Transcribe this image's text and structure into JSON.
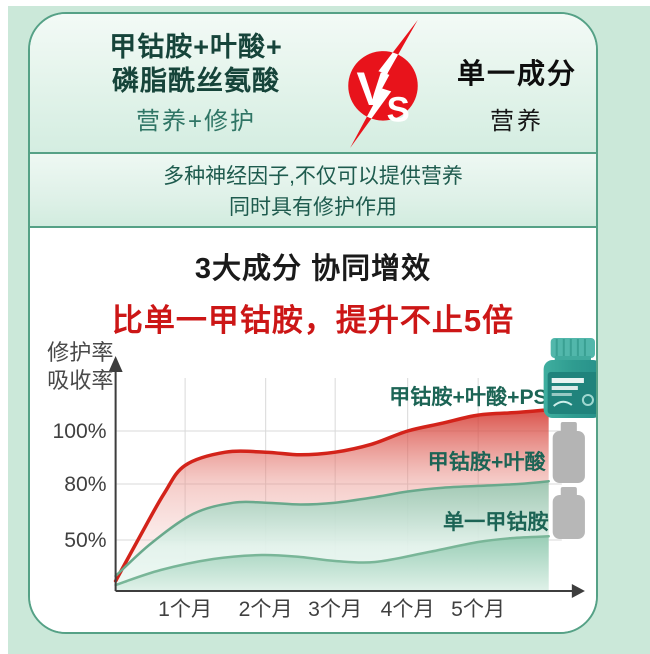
{
  "header": {
    "left_line1": "甲钴胺+叶酸+",
    "left_line2": "磷脂酰丝氨酸",
    "left_sub": "营养+修护",
    "vs_v": "V",
    "vs_s": "S",
    "right_title": "单一成分",
    "right_sub": "营养"
  },
  "benefit": {
    "line1": "多种神经因子,不仅可以提供营养",
    "line2": "同时具有修护作用"
  },
  "section_title": {
    "black": "3大成分 协同增效",
    "red": "比单一甲钴胺，提升不止5倍"
  },
  "colors": {
    "panel_green": "#cbe8d9",
    "card_border": "#55a186",
    "teal_text": "#16443a",
    "vs_red": "#e8131b",
    "title_red": "#cc1616",
    "axis_gray": "#3d3d3d"
  },
  "chart_data": {
    "type": "area",
    "title": "",
    "ylabel_lines": [
      "修护率",
      "吸收率"
    ],
    "xlabel": "",
    "grid": true,
    "x_unit": "个月",
    "x_ticks": [
      {
        "label": "1个月",
        "month": 1
      },
      {
        "label": "2个月",
        "month": 2
      },
      {
        "label": "3个月",
        "month": 3
      },
      {
        "label": "4个月",
        "month": 4
      },
      {
        "label": "5个月",
        "month": 5
      }
    ],
    "y_ticks": [
      {
        "label": "100%",
        "percent": 100
      },
      {
        "label": "80%",
        "percent": 80
      },
      {
        "label": "50%",
        "percent": 50
      }
    ],
    "ylim_percent": [
      0,
      110
    ],
    "series": [
      {
        "name": "甲钴胺+叶酸+PS",
        "stroke": "#d3231a",
        "fill_stops": [
          [
            0,
            "rgba(211,52,43,0.85)"
          ],
          [
            0.4,
            "rgba(233,142,134,0.45)"
          ],
          [
            1,
            "rgba(251,238,236,0.2)"
          ]
        ],
        "x_months": [
          0,
          0.35,
          0.7,
          1,
          1.5,
          2,
          2.5,
          3,
          3.5,
          4,
          4.5,
          5,
          5.6,
          6.05
        ],
        "percents": [
          9,
          52,
          75,
          87,
          92,
          92,
          91,
          92,
          95,
          100,
          103,
          106,
          107,
          108
        ]
      },
      {
        "name": "甲钴胺+叶酸",
        "stroke": "#69a98c",
        "fill_stops": [
          [
            0,
            "rgba(146,199,175,0.85)"
          ],
          [
            0.6,
            "rgba(226,243,236,0.92)"
          ],
          [
            1,
            "rgba(238,249,244,0.95)"
          ]
        ],
        "x_months": [
          0,
          0.5,
          1.1,
          1.6,
          2,
          2.5,
          3,
          3.55,
          4,
          4.5,
          5,
          5.6,
          6.05
        ],
        "percents": [
          14,
          46,
          64,
          70,
          70,
          69,
          70,
          73,
          76,
          78,
          79,
          80,
          81
        ]
      },
      {
        "name": "单一甲钴胺",
        "stroke": "#79b698",
        "fill_stops": [
          [
            0,
            "rgba(150,204,180,0.95)"
          ],
          [
            1,
            "rgba(223,241,232,1)"
          ]
        ],
        "x_months": [
          0,
          0.65,
          1.35,
          1.95,
          2.5,
          3,
          3.55,
          4.3,
          5,
          5.5,
          6.05
        ],
        "percents": [
          5,
          20,
          31,
          35,
          33,
          29,
          28,
          38,
          48,
          51,
          52
        ]
      }
    ]
  }
}
